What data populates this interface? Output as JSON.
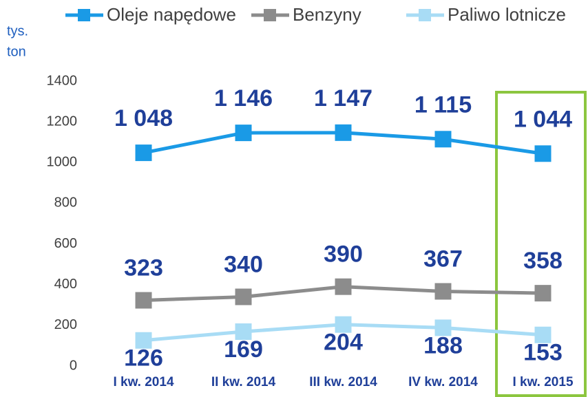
{
  "chart_data": {
    "type": "line",
    "ylabel": [
      "tys.",
      "ton"
    ],
    "categories": [
      "I kw. 2014",
      "II kw. 2014",
      "III kw. 2014",
      "IV kw. 2014",
      "I kw. 2015"
    ],
    "series": [
      {
        "name": "Oleje napędowe",
        "color": "#1a9ae6",
        "values": [
          1048,
          1146,
          1147,
          1115,
          1044
        ],
        "value_labels": [
          "1 048",
          "1 146",
          "1 147",
          "1 115",
          "1 044"
        ]
      },
      {
        "name": "Benzyny",
        "color": "#8c8c8c",
        "values": [
          323,
          340,
          390,
          367,
          358
        ]
      },
      {
        "name": "Paliwo lotnicze",
        "color": "#a8dcf5",
        "values": [
          126,
          169,
          204,
          188,
          153
        ]
      }
    ],
    "ylim": [
      0,
      1400
    ],
    "yticks": [
      0,
      200,
      400,
      600,
      800,
      1000,
      1200,
      1400
    ],
    "legend": "top"
  }
}
